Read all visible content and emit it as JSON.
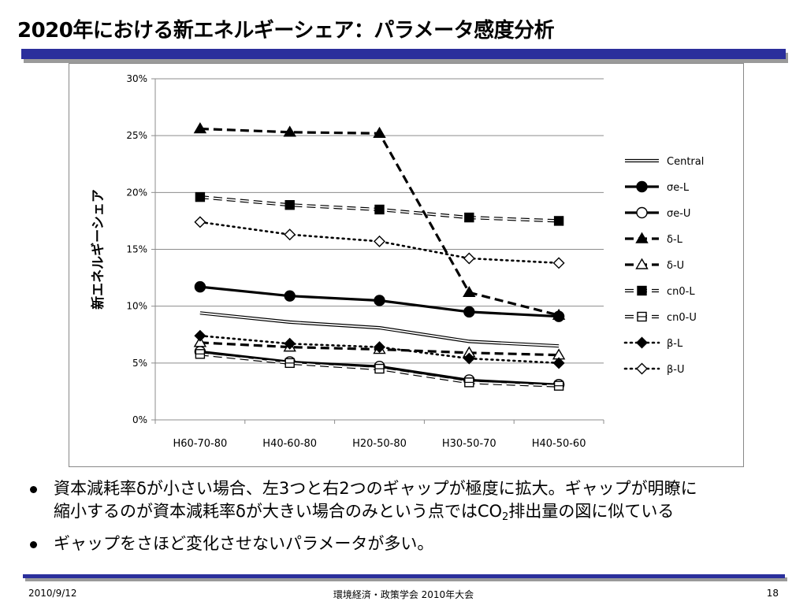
{
  "slide": {
    "title": "2020年における新エネルギーシェア：パラメータ感度分析",
    "bullet1_line1": "資本減耗率δが小さい場合、左3つと右2つのギャップが極度に拡大。ギャップが明瞭に",
    "bullet1_line2_pre": "縮小するのが資本減耗率δが大きい場合のみという点ではCO",
    "bullet1_line2_sub": "2",
    "bullet1_line2_post": "排出量の図に似ている",
    "bullet2": "ギャップをさほど変化させないパラメータが多い。",
    "footer_date": "2010/9/12",
    "footer_event": "環境経済・政策学会 2010年大会",
    "footer_page": "18",
    "accent_color": "#2b2f9c"
  },
  "chart_data": {
    "type": "line",
    "categories": [
      "H60-70-80",
      "H40-60-80",
      "H20-50-80",
      "H30-50-70",
      "H40-50-60"
    ],
    "ylabel": "新エネルギーシェア",
    "ylim": [
      0,
      30
    ],
    "yticks": [
      0,
      5,
      10,
      15,
      20,
      25,
      30
    ],
    "ytick_labels": [
      "0%",
      "5%",
      "10%",
      "15%",
      "20%",
      "25%",
      "30%"
    ],
    "grid": true,
    "legend_position": "right",
    "series": [
      {
        "name": "Central",
        "values": [
          9.4,
          8.6,
          8.1,
          6.9,
          6.5
        ],
        "style": "double",
        "marker": "none"
      },
      {
        "name": "σe-L",
        "values": [
          11.7,
          10.9,
          10.5,
          9.5,
          9.1
        ],
        "style": "solid",
        "marker": "circle-filled"
      },
      {
        "name": "σe-U",
        "values": [
          6.0,
          5.1,
          4.7,
          3.5,
          3.1
        ],
        "style": "solid",
        "marker": "circle-open"
      },
      {
        "name": "δ-L",
        "values": [
          25.6,
          25.3,
          25.2,
          11.2,
          9.2
        ],
        "style": "dashed",
        "marker": "triangle-filled"
      },
      {
        "name": "δ-U",
        "values": [
          6.8,
          6.4,
          6.2,
          5.9,
          5.7
        ],
        "style": "dashed",
        "marker": "triangle-open"
      },
      {
        "name": "cn0-L",
        "values": [
          19.6,
          18.9,
          18.5,
          17.8,
          17.5
        ],
        "style": "dashed-double",
        "marker": "square-filled"
      },
      {
        "name": "cn0-U",
        "values": [
          5.8,
          5.0,
          4.5,
          3.3,
          3.0
        ],
        "style": "dashed-double",
        "marker": "square-open"
      },
      {
        "name": "β-L",
        "values": [
          7.4,
          6.7,
          6.4,
          5.4,
          5.0
        ],
        "style": "dotted",
        "marker": "diamond-filled"
      },
      {
        "name": "β-U",
        "values": [
          17.4,
          16.3,
          15.7,
          14.2,
          13.8
        ],
        "style": "dotted",
        "marker": "diamond-open"
      }
    ]
  }
}
